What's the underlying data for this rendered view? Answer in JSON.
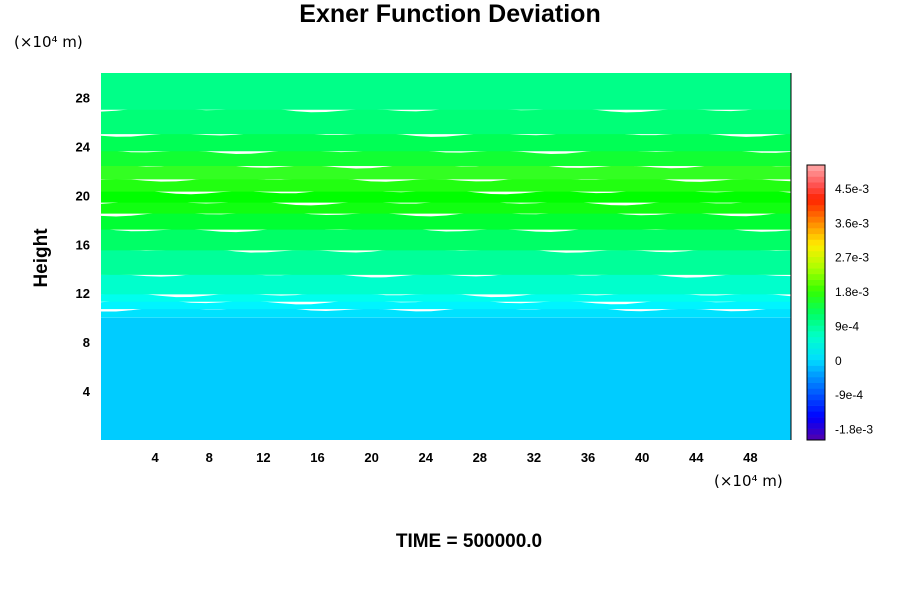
{
  "chart_data": {
    "type": "heatmap",
    "title": "Exner Function Deviation",
    "ylabel": "Height",
    "y_unit_label": "(×10⁴ m)",
    "x_unit_label": "(×10⁴ m)",
    "xlim": [
      0,
      51
    ],
    "ylim": [
      0,
      30
    ],
    "x_ticks": [
      "4",
      "8",
      "12",
      "16",
      "20",
      "24",
      "28",
      "32",
      "36",
      "40",
      "44",
      "48"
    ],
    "y_ticks": [
      "4",
      "8",
      "12",
      "16",
      "20",
      "24",
      "28"
    ],
    "colorbar": {
      "min": -0.0021,
      "max": 0.0051,
      "labels": [
        "4.5e-3",
        "3.6e-3",
        "2.7e-3",
        "1.8e-3",
        "9e-4",
        "0",
        "-9e-4",
        "-1.8e-3"
      ],
      "label_values": [
        0.0045,
        0.0036,
        0.0027,
        0.0018,
        0.0009,
        0,
        -0.0009,
        -0.0018
      ]
    },
    "bands": [
      {
        "y0": 0,
        "y1": 10,
        "value": 0.0,
        "color": "#00ccff"
      },
      {
        "y0": 10,
        "y1": 10.7,
        "value": 0.0002,
        "color": "#00e2ff"
      },
      {
        "y0": 10.7,
        "y1": 11.3,
        "value": 0.0004,
        "color": "#00f4ff"
      },
      {
        "y0": 11.3,
        "y1": 11.9,
        "value": 0.0006,
        "color": "#00ffee"
      },
      {
        "y0": 11.9,
        "y1": 13.5,
        "value": 0.0008,
        "color": "#00ffcc"
      },
      {
        "y0": 13.5,
        "y1": 15.5,
        "value": 0.001,
        "color": "#00ff99"
      },
      {
        "y0": 15.5,
        "y1": 17.2,
        "value": 0.0012,
        "color": "#00ff66"
      },
      {
        "y0": 17.2,
        "y1": 18.5,
        "value": 0.0014,
        "color": "#00ff33"
      },
      {
        "y0": 18.5,
        "y1": 19.4,
        "value": 0.0016,
        "color": "#11ff11"
      },
      {
        "y0": 19.4,
        "y1": 20.3,
        "value": 0.0018,
        "color": "#00ff00"
      },
      {
        "y0": 20.3,
        "y1": 21.3,
        "value": 0.0017,
        "color": "#22ff11"
      },
      {
        "y0": 21.3,
        "y1": 22.4,
        "value": 0.0016,
        "color": "#33ff22"
      },
      {
        "y0": 22.4,
        "y1": 23.6,
        "value": 0.0014,
        "color": "#11ff33"
      },
      {
        "y0": 23.6,
        "y1": 25.0,
        "value": 0.0012,
        "color": "#00ff55"
      },
      {
        "y0": 25.0,
        "y1": 27.0,
        "value": 0.001,
        "color": "#00ff77"
      },
      {
        "y0": 27.0,
        "y1": 30.0,
        "value": 0.0009,
        "color": "#00ff88"
      }
    ]
  },
  "time_label": "TIME = 500000.0"
}
